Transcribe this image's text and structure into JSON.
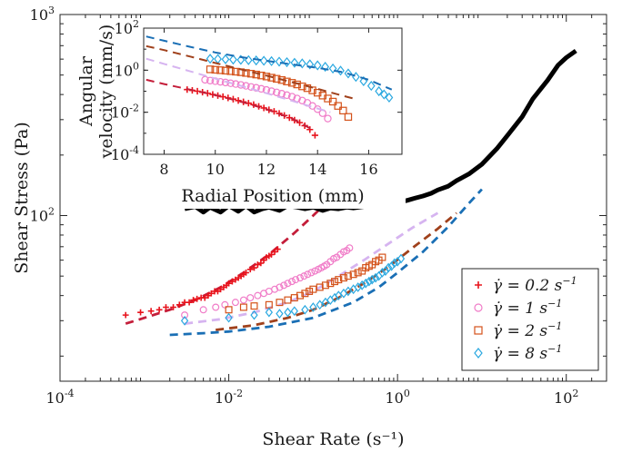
{
  "chart_data": [
    {
      "type": "scatter",
      "title": "",
      "xlabel": "Shear Rate (s⁻¹)",
      "ylabel": "Shear Stress (Pa)",
      "xscale": "log",
      "yscale": "log",
      "xlim": [
        0.0001,
        300
      ],
      "ylim": [
        15,
        1000
      ],
      "xticks": [
        {
          "value": 0.0001,
          "base": "10",
          "exp": "-4"
        },
        {
          "value": 0.01,
          "base": "10",
          "exp": "-2"
        },
        {
          "value": 1,
          "base": "10",
          "exp": "0"
        },
        {
          "value": 100,
          "base": "10",
          "exp": "2"
        }
      ],
      "yticks": [
        {
          "value": 100,
          "base": "10",
          "exp": "2"
        },
        {
          "value": 1000,
          "base": "10",
          "exp": "3"
        }
      ],
      "grid": false,
      "legend_position": "bottom-right",
      "legend": [
        {
          "label_prefix": "γ̇ = 0.2 s",
          "label_exp": "−1",
          "marker": "plus",
          "color": "#e8131c"
        },
        {
          "label_prefix": "γ̇ = 1 s",
          "label_exp": "−1",
          "marker": "circle",
          "color": "#f07cc8"
        },
        {
          "label_prefix": "γ̇ = 2 s",
          "label_exp": "−1",
          "marker": "square",
          "color": "#d4521a"
        },
        {
          "label_prefix": "γ̇ = 8 s",
          "label_exp": "−1",
          "marker": "diamond",
          "color": "#2aa8e0"
        }
      ],
      "series": [
        {
          "style": "solid-line",
          "color": "#000000",
          "x": [
            0.003,
            0.004,
            0.005,
            0.006,
            0.008,
            0.01,
            0.013,
            0.016,
            0.02,
            0.025,
            0.03,
            0.04,
            0.05,
            0.065,
            0.08,
            0.1,
            0.13,
            0.16,
            0.2,
            0.25,
            0.3,
            0.4,
            0.5,
            0.65,
            0.8,
            1,
            1.3,
            1.6,
            2,
            2.5,
            3,
            4,
            5,
            7,
            10,
            15,
            20,
            30,
            40,
            60,
            80,
            100,
            130
          ],
          "y": [
            108,
            111,
            104,
            110,
            104,
            112,
            105,
            112,
            104,
            108,
            110,
            106,
            112,
            110,
            108,
            110,
            106,
            109,
            108,
            110,
            109,
            111,
            112,
            113,
            114,
            116,
            119,
            122,
            125,
            129,
            134,
            140,
            149,
            161,
            180,
            215,
            250,
            310,
            380,
            470,
            560,
            610,
            660
          ]
        },
        {
          "style": "markers",
          "marker": "plus",
          "color": "#e8131c",
          "x": [
            0.0006,
            0.0009,
            0.0012,
            0.0015,
            0.0018,
            0.0022,
            0.0026,
            0.003,
            0.0034,
            0.0038,
            0.0042,
            0.0047,
            0.0052,
            0.0057,
            0.0062,
            0.0068,
            0.0074,
            0.008,
            0.0087,
            0.0094,
            0.01,
            0.011,
            0.012,
            0.013,
            0.014,
            0.015,
            0.016,
            0.018,
            0.02,
            0.022,
            0.024,
            0.026,
            0.028,
            0.03,
            0.032,
            0.035,
            0.038
          ],
          "y": [
            32,
            33,
            33.5,
            34,
            35,
            35,
            36,
            37,
            37,
            38,
            38.5,
            39,
            39,
            40,
            41,
            42,
            42,
            43,
            44,
            45,
            46,
            47,
            48,
            49,
            50,
            51,
            52,
            54,
            55,
            57,
            58,
            60,
            62,
            63,
            64,
            66,
            68
          ]
        },
        {
          "style": "markers",
          "marker": "circle",
          "color": "#f07cc8",
          "x": [
            0.003,
            0.005,
            0.007,
            0.009,
            0.012,
            0.015,
            0.018,
            0.022,
            0.026,
            0.03,
            0.035,
            0.04,
            0.045,
            0.05,
            0.056,
            0.062,
            0.07,
            0.078,
            0.086,
            0.095,
            0.105,
            0.115,
            0.125,
            0.135,
            0.145,
            0.16,
            0.175,
            0.19,
            0.21,
            0.23,
            0.25,
            0.27
          ],
          "y": [
            32,
            34,
            35,
            36,
            37,
            38,
            39,
            40,
            41,
            42,
            43,
            44,
            45,
            46,
            47,
            48,
            49,
            50,
            51,
            52,
            53,
            54,
            55,
            56,
            57,
            59,
            61,
            62,
            64,
            66,
            67,
            69
          ]
        },
        {
          "style": "markers",
          "marker": "square",
          "color": "#d4521a",
          "x": [
            0.01,
            0.015,
            0.02,
            0.03,
            0.04,
            0.05,
            0.06,
            0.07,
            0.08,
            0.09,
            0.1,
            0.12,
            0.14,
            0.16,
            0.18,
            0.2,
            0.23,
            0.26,
            0.3,
            0.34,
            0.38,
            0.42,
            0.46,
            0.5,
            0.55,
            0.6,
            0.66
          ],
          "y": [
            34,
            35,
            35.5,
            36,
            37,
            38,
            39,
            40,
            41,
            42,
            43,
            44,
            45,
            46,
            47,
            48,
            49,
            50,
            51,
            52,
            53,
            55,
            56,
            57,
            59,
            60,
            62
          ]
        },
        {
          "style": "markers",
          "marker": "diamond",
          "color": "#2aa8e0",
          "x": [
            0.003,
            0.01,
            0.02,
            0.03,
            0.04,
            0.05,
            0.06,
            0.08,
            0.1,
            0.12,
            0.14,
            0.16,
            0.18,
            0.2,
            0.23,
            0.26,
            0.3,
            0.34,
            0.38,
            0.42,
            0.46,
            0.5,
            0.55,
            0.6,
            0.66,
            0.72,
            0.78,
            0.85,
            0.92,
            1.0,
            1.1
          ],
          "y": [
            30,
            31,
            32,
            33,
            32.5,
            33,
            33.5,
            34,
            35,
            36,
            37,
            38,
            39,
            40,
            41,
            42,
            43,
            44,
            45,
            46,
            47,
            48,
            49,
            50,
            52,
            53,
            55,
            56,
            58,
            59,
            61
          ]
        },
        {
          "style": "dashed-line",
          "color": "#c41e3a",
          "x": [
            0.0006,
            0.001,
            0.002,
            0.004,
            0.008,
            0.015,
            0.03,
            0.06,
            0.1,
            0.15
          ],
          "y": [
            29,
            31,
            34,
            38,
            44,
            52,
            64,
            82,
            100,
            118
          ]
        },
        {
          "style": "dashed-line",
          "color": "#d6b4f0",
          "x": [
            0.003,
            0.008,
            0.02,
            0.05,
            0.1,
            0.2,
            0.4,
            0.8,
            1.5,
            3
          ],
          "y": [
            29,
            30.5,
            33,
            37,
            42,
            50,
            60,
            73,
            87,
            103
          ]
        },
        {
          "style": "dashed-line",
          "color": "#a0411c",
          "x": [
            0.007,
            0.02,
            0.05,
            0.1,
            0.2,
            0.4,
            0.8,
            1.5,
            3,
            5
          ],
          "y": [
            27,
            28.5,
            31,
            34,
            39,
            46,
            56,
            69,
            86,
            103
          ]
        },
        {
          "style": "dashed-line",
          "color": "#1a6fb5",
          "x": [
            0.002,
            0.005,
            0.01,
            0.03,
            0.1,
            0.3,
            0.6,
            1,
            2,
            4,
            7,
            10
          ],
          "y": [
            25.5,
            26,
            26.5,
            28,
            31,
            37,
            44,
            52,
            66,
            88,
            115,
            135
          ]
        }
      ]
    },
    {
      "type": "scatter",
      "title": "",
      "xlabel": "Radial Position (mm)",
      "ylabel_line1": "Angular",
      "ylabel_line2": "velocity (mm/s)",
      "xscale": "linear",
      "yscale": "log",
      "xlim": [
        7.2,
        17.3
      ],
      "ylim": [
        0.0001,
        100
      ],
      "xticks": [
        8,
        10,
        12,
        14,
        16
      ],
      "yticks": [
        {
          "value": 0.0001,
          "base": "10",
          "exp": "-4"
        },
        {
          "value": 0.01,
          "base": "10",
          "exp": "-2"
        },
        {
          "value": 1,
          "base": "10",
          "exp": "0"
        },
        {
          "value": 100,
          "base": "10",
          "exp": "2"
        }
      ],
      "grid": false,
      "series": [
        {
          "style": "markers",
          "marker": "plus",
          "color": "#e8131c",
          "x": [
            8.9,
            9.1,
            9.3,
            9.5,
            9.7,
            9.9,
            10.1,
            10.3,
            10.5,
            10.7,
            10.9,
            11.1,
            11.3,
            11.5,
            11.7,
            11.9,
            12.1,
            12.3,
            12.5,
            12.7,
            12.9,
            13.1,
            13.3,
            13.5,
            13.7,
            13.9
          ],
          "y": [
            0.12,
            0.11,
            0.1,
            0.09,
            0.08,
            0.07,
            0.062,
            0.055,
            0.048,
            0.042,
            0.036,
            0.031,
            0.027,
            0.023,
            0.019,
            0.016,
            0.013,
            0.011,
            0.0088,
            0.007,
            0.0055,
            0.0042,
            0.0032,
            0.0023,
            0.0015,
            0.0008
          ]
        },
        {
          "style": "markers",
          "marker": "circle",
          "color": "#f07cc8",
          "x": [
            9.6,
            9.8,
            10.0,
            10.2,
            10.4,
            10.6,
            10.8,
            11.0,
            11.2,
            11.4,
            11.6,
            11.8,
            12.0,
            12.2,
            12.4,
            12.6,
            12.8,
            13.0,
            13.2,
            13.4,
            13.6,
            13.8,
            14.0,
            14.2,
            14.4
          ],
          "y": [
            0.35,
            0.32,
            0.3,
            0.28,
            0.26,
            0.24,
            0.22,
            0.2,
            0.18,
            0.16,
            0.145,
            0.13,
            0.115,
            0.1,
            0.088,
            0.076,
            0.065,
            0.055,
            0.045,
            0.036,
            0.028,
            0.02,
            0.014,
            0.009,
            0.005
          ]
        },
        {
          "style": "markers",
          "marker": "square",
          "color": "#d4521a",
          "x": [
            9.8,
            10.0,
            10.2,
            10.4,
            10.6,
            10.8,
            11.0,
            11.2,
            11.4,
            11.6,
            11.8,
            12.0,
            12.2,
            12.4,
            12.6,
            12.8,
            13.0,
            13.2,
            13.4,
            13.6,
            13.8,
            14.0,
            14.2,
            14.4,
            14.6,
            14.8,
            15.0,
            15.2
          ],
          "y": [
            1.1,
            1.05,
            1.0,
            0.95,
            0.9,
            0.85,
            0.8,
            0.74,
            0.68,
            0.62,
            0.56,
            0.5,
            0.44,
            0.39,
            0.34,
            0.29,
            0.25,
            0.21,
            0.17,
            0.14,
            0.11,
            0.085,
            0.062,
            0.045,
            0.032,
            0.02,
            0.012,
            0.006
          ]
        },
        {
          "style": "markers",
          "marker": "diamond",
          "color": "#2aa8e0",
          "x": [
            9.8,
            10.1,
            10.4,
            10.7,
            11.0,
            11.3,
            11.6,
            11.9,
            12.2,
            12.5,
            12.8,
            13.1,
            13.4,
            13.7,
            14.0,
            14.3,
            14.6,
            14.9,
            15.2,
            15.5,
            15.8,
            16.1,
            16.4,
            16.6,
            16.8
          ],
          "y": [
            3.5,
            3.4,
            3.3,
            3.2,
            3.1,
            3.0,
            2.9,
            2.8,
            2.7,
            2.55,
            2.4,
            2.25,
            2.1,
            1.9,
            1.7,
            1.45,
            1.2,
            0.95,
            0.7,
            0.48,
            0.3,
            0.18,
            0.1,
            0.07,
            0.05
          ]
        },
        {
          "style": "dashed-line",
          "color": "#c41e3a",
          "x": [
            7.3,
            8,
            9,
            10,
            11,
            12,
            13,
            13.8
          ],
          "y": [
            0.35,
            0.22,
            0.12,
            0.065,
            0.032,
            0.014,
            0.005,
            0.0015
          ]
        },
        {
          "style": "dashed-line",
          "color": "#d6b4f0",
          "x": [
            7.3,
            8,
            9,
            10,
            11,
            12,
            13,
            14,
            14.5
          ],
          "y": [
            3.5,
            2.0,
            0.9,
            0.4,
            0.18,
            0.08,
            0.035,
            0.015,
            0.01
          ]
        },
        {
          "style": "dashed-line",
          "color": "#a0411c",
          "x": [
            7.3,
            8,
            9,
            10,
            11,
            12,
            13,
            14,
            15,
            15.4
          ],
          "y": [
            14,
            9,
            4.5,
            2.2,
            1.1,
            0.55,
            0.27,
            0.13,
            0.06,
            0.045
          ]
        },
        {
          "style": "dashed-line",
          "color": "#1a6fb5",
          "x": [
            7.3,
            8,
            9,
            10,
            11,
            12,
            13,
            14,
            15,
            16,
            16.9
          ],
          "y": [
            40,
            25,
            13,
            7,
            4.2,
            2.8,
            1.9,
            1.3,
            0.8,
            0.35,
            0.12
          ]
        }
      ]
    }
  ]
}
